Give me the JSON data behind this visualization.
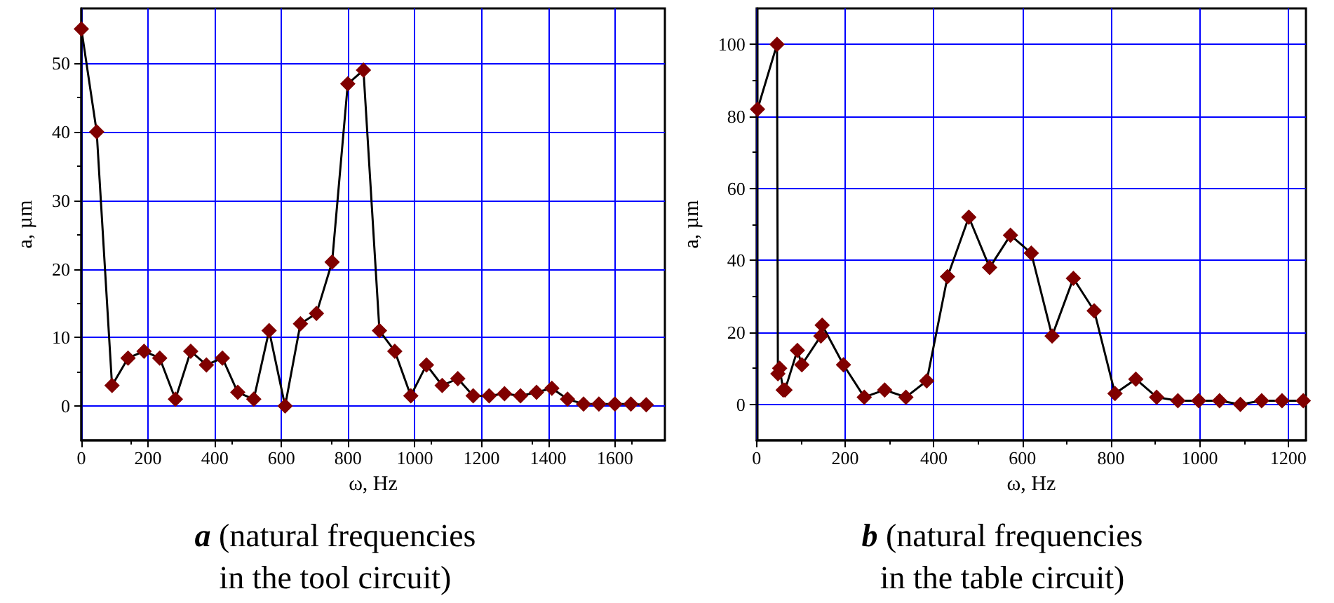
{
  "chart_data": [
    {
      "type": "line",
      "title": "a (natural frequencies\nin the tool circuit)",
      "xlabel": "ω, Hz",
      "ylabel": "a, µm",
      "x": [
        0,
        46,
        92,
        140,
        188,
        235,
        282,
        328,
        375,
        423,
        469,
        517,
        563,
        611,
        657,
        705,
        752,
        799,
        846,
        894,
        940,
        988,
        1035,
        1082,
        1129,
        1175,
        1223,
        1269,
        1317,
        1365,
        1411,
        1458,
        1506,
        1552,
        1600,
        1648,
        1694
      ],
      "series": [
        {
          "color": "#800000",
          "values": [
            55,
            40,
            3,
            7,
            8,
            7,
            1,
            8,
            6,
            7,
            2,
            1,
            11,
            0,
            12,
            13.5,
            21,
            47,
            49,
            11,
            8,
            1.5,
            6,
            3,
            4,
            1.5,
            1.5,
            1.8,
            1.5,
            2,
            2.6,
            1,
            0.3,
            0.3,
            0.3,
            0.3,
            0.2
          ]
        }
      ],
      "xlim": [
        0,
        1750
      ],
      "xticks": [
        0,
        200,
        400,
        600,
        800,
        1000,
        1200,
        1400,
        1600
      ],
      "ylim": [
        -5,
        58
      ],
      "yticks": [
        0,
        10,
        20,
        30,
        40,
        50
      ],
      "grid": true,
      "marker": "diamond",
      "line_style": "solid"
    },
    {
      "type": "line",
      "title": "b (natural frequencies\nin the table circuit)",
      "xlabel": "ω, Hz",
      "ylabel": "a, µm",
      "x": [
        2,
        46,
        48,
        52,
        60,
        64,
        92,
        102,
        145,
        148,
        196,
        243,
        289,
        337,
        384,
        431,
        479,
        526,
        573,
        620,
        667,
        715,
        762,
        809,
        856,
        903,
        951,
        998,
        1045,
        1092,
        1140,
        1186,
        1234
      ],
      "series": [
        {
          "color": "#800000",
          "values": [
            82,
            100,
            8.5,
            10,
            4,
            4,
            15,
            11,
            19,
            22,
            11,
            2,
            4,
            2,
            6.5,
            35.5,
            52,
            38,
            47,
            42,
            19,
            35,
            26,
            3,
            7,
            2,
            1,
            1,
            1,
            0,
            1,
            1,
            1
          ]
        }
      ],
      "xlim": [
        0,
        1240
      ],
      "xticks": [
        0,
        200,
        400,
        600,
        800,
        1000,
        1200
      ],
      "ylim": [
        -10,
        110
      ],
      "yticks": [
        0,
        20,
        40,
        60,
        80,
        100
      ],
      "grid": true,
      "marker": "diamond",
      "line_style": "solid"
    }
  ]
}
